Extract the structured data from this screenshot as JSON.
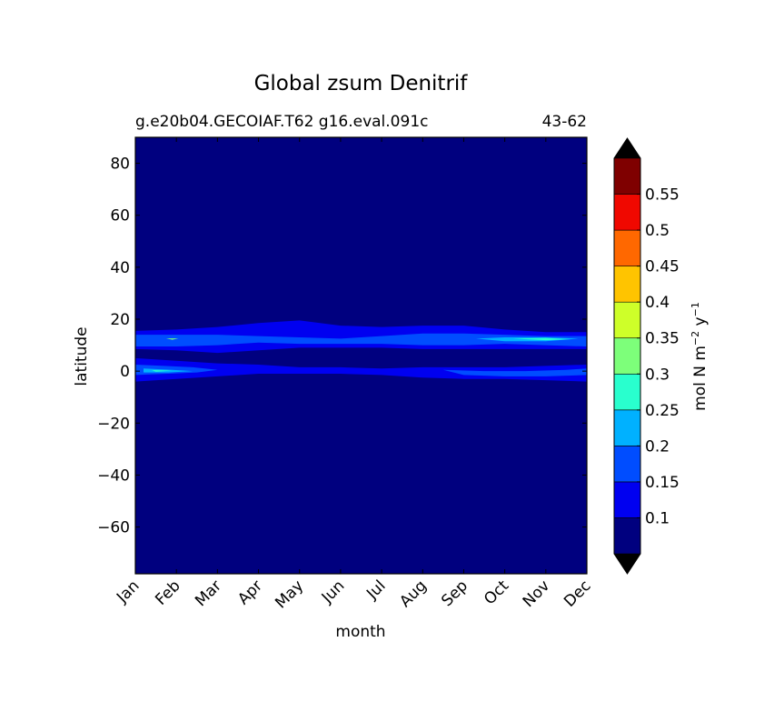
{
  "chart_data": {
    "type": "heatmap",
    "title": "Global zsum Denitrif",
    "subtitle_left": "g.e20b04.GECOIAF.T62 g16.eval.091c",
    "subtitle_right": "43-62",
    "xlabel": "month",
    "ylabel": "latitude",
    "x_categories": [
      "Jan",
      "Feb",
      "Mar",
      "Apr",
      "May",
      "Jun",
      "Jul",
      "Aug",
      "Sep",
      "Oct",
      "Nov",
      "Dec"
    ],
    "ylim": [
      -78,
      90
    ],
    "y_ticks": [
      80,
      60,
      40,
      20,
      0,
      -20,
      -40,
      -60
    ],
    "y_tick_labels": [
      "80",
      "60",
      "40",
      "20",
      "0",
      "−20",
      "−40",
      "−60"
    ],
    "colorbar": {
      "label_main": "mol N m",
      "label_exp1": "−2",
      "label_mid": " y",
      "label_exp2": "−1",
      "levels": [
        0.1,
        0.15,
        0.2,
        0.25,
        0.3,
        0.35,
        0.4,
        0.45,
        0.5,
        0.55
      ],
      "tick_labels": [
        "0.1",
        "0.15",
        "0.2",
        "0.25",
        "0.3",
        "0.35",
        "0.4",
        "0.45",
        "0.5",
        "0.55"
      ],
      "colors": [
        "#00007f",
        "#0000f0",
        "#004dff",
        "#00b1ff",
        "#29ffce",
        "#7dff7a",
        "#ceff29",
        "#ffc400",
        "#ff6800",
        "#f00800",
        "#7f0000"
      ],
      "under_color": "#000000",
      "over_color": "#000000",
      "extend": "both"
    },
    "background_color": "#00007f",
    "bands": [
      {
        "level": 1,
        "points": [
          [
            0,
            15.5
          ],
          [
            1,
            16
          ],
          [
            2,
            17
          ],
          [
            3,
            18.5
          ],
          [
            4,
            19.5
          ],
          [
            5,
            17.5
          ],
          [
            6,
            17
          ],
          [
            7,
            17.5
          ],
          [
            8,
            17.5
          ],
          [
            9,
            16
          ],
          [
            10,
            15
          ],
          [
            11,
            15
          ],
          [
            11,
            8.5
          ],
          [
            10,
            8.5
          ],
          [
            9,
            8.5
          ],
          [
            8,
            8.5
          ],
          [
            7,
            8.5
          ],
          [
            6,
            9
          ],
          [
            5,
            9
          ],
          [
            4,
            9
          ],
          [
            3,
            8
          ],
          [
            2,
            7
          ],
          [
            1,
            8
          ],
          [
            0,
            8.5
          ]
        ]
      },
      {
        "level": 2,
        "points": [
          [
            0,
            14
          ],
          [
            1,
            14
          ],
          [
            2,
            14
          ],
          [
            3,
            13.5
          ],
          [
            4,
            13
          ],
          [
            5,
            12.5
          ],
          [
            6,
            13.5
          ],
          [
            7,
            14.5
          ],
          [
            8,
            14.5
          ],
          [
            9,
            14
          ],
          [
            10,
            13.5
          ],
          [
            11,
            13.5
          ],
          [
            11,
            9.5
          ],
          [
            10,
            10
          ],
          [
            9,
            10.5
          ],
          [
            8,
            10
          ],
          [
            7,
            10
          ],
          [
            6,
            10.5
          ],
          [
            5,
            10.5
          ],
          [
            4,
            10.5
          ],
          [
            3,
            11
          ],
          [
            2,
            10
          ],
          [
            1,
            9.5
          ],
          [
            0,
            9.5
          ]
        ]
      },
      {
        "level": 1,
        "points": [
          [
            0,
            5
          ],
          [
            1,
            4
          ],
          [
            2,
            3
          ],
          [
            3,
            2.5
          ],
          [
            4,
            1.5
          ],
          [
            5,
            1.5
          ],
          [
            6,
            1
          ],
          [
            7,
            1.5
          ],
          [
            8,
            1.5
          ],
          [
            9,
            1.5
          ],
          [
            10,
            2
          ],
          [
            11,
            2.5
          ],
          [
            11,
            -4
          ],
          [
            10,
            -3.5
          ],
          [
            9,
            -3
          ],
          [
            8,
            -3
          ],
          [
            7,
            -2.5
          ],
          [
            6,
            -1.5
          ],
          [
            5,
            -1
          ],
          [
            4,
            -1
          ],
          [
            3,
            -1
          ],
          [
            2,
            -2
          ],
          [
            1,
            -3
          ],
          [
            0,
            -4
          ]
        ]
      },
      {
        "level": 2,
        "points": [
          [
            0,
            2.5
          ],
          [
            0.7,
            2
          ],
          [
            1.4,
            1.5
          ],
          [
            2,
            0.5
          ],
          [
            1.5,
            -0.5
          ],
          [
            0.8,
            -1
          ],
          [
            0,
            -1.5
          ]
        ]
      },
      {
        "level": 2,
        "points": [
          [
            7.5,
            0.5
          ],
          [
            8.5,
            0
          ],
          [
            9.5,
            0
          ],
          [
            10.5,
            0.5
          ],
          [
            11,
            1
          ],
          [
            11,
            -1.5
          ],
          [
            10,
            -2
          ],
          [
            9,
            -2
          ],
          [
            8,
            -1.5
          ]
        ]
      },
      {
        "level": 3,
        "points": [
          [
            8.3,
            12.5
          ],
          [
            9,
            13
          ],
          [
            10,
            13
          ],
          [
            10.8,
            12.5
          ],
          [
            10,
            11.5
          ],
          [
            9,
            11.5
          ]
        ]
      },
      {
        "level": 3,
        "points": [
          [
            0.2,
            1
          ],
          [
            0.9,
            0.5
          ],
          [
            1.4,
            0
          ],
          [
            0.8,
            -0.5
          ],
          [
            0.2,
            -0.5
          ]
        ]
      },
      {
        "level": 4,
        "points": [
          [
            9.2,
            12.5
          ],
          [
            10,
            12.8
          ],
          [
            10.6,
            12.3
          ],
          [
            10,
            11.9
          ]
        ]
      },
      {
        "level": 4,
        "points": [
          [
            0.4,
            0.4
          ],
          [
            0.9,
            0.2
          ],
          [
            0.5,
            -0.2
          ]
        ]
      },
      {
        "level": 5,
        "points": [
          [
            0.75,
            12.6
          ],
          [
            1.05,
            12.6
          ],
          [
            0.9,
            12.1
          ]
        ]
      }
    ]
  }
}
